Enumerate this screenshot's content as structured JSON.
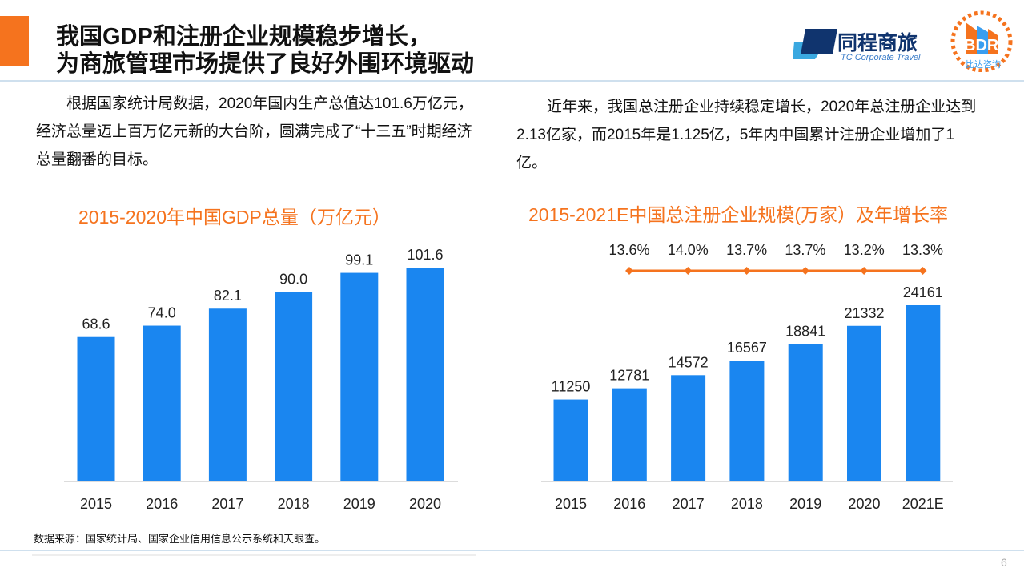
{
  "header": {
    "title_line1": "我国GDP和注册企业规模稳步增长，",
    "title_line2": "为商旅管理市场提供了良好外围环境驱动",
    "logo1": {
      "name": "同程商旅",
      "sub": "TC Corporate Travel"
    },
    "logo2": {
      "name": "BDR",
      "sub": "比达咨询"
    }
  },
  "left_text": "根据国家统计局数据，2020年国内生产总值达101.6万亿元，经济总量迈上百万亿元新的大台阶，圆满完成了“十三五”时期经济总量翻番的目标。",
  "right_text": "近年来，我国总注册企业持续稳定增长，2020年总注册企业达到2.13亿家，而2015年是1.125亿，5年内中国累计注册企业增加了1亿。",
  "chart_data": [
    {
      "type": "bar",
      "title": "2015-2020年中国GDP总量（万亿元）",
      "categories": [
        "2015",
        "2016",
        "2017",
        "2018",
        "2019",
        "2020"
      ],
      "values": [
        68.6,
        74.0,
        82.1,
        90.0,
        99.1,
        101.6
      ],
      "value_labels": [
        "68.6",
        "74.0",
        "82.1",
        "90.0",
        "99.1",
        "101.6"
      ],
      "ylim": [
        0,
        110
      ],
      "grid": false,
      "color": "#1a86f0"
    },
    {
      "type": "bar+line",
      "title": "2015-2021E中国总注册企业规模(万家）及年增长率",
      "categories": [
        "2015",
        "2016",
        "2017",
        "2018",
        "2019",
        "2020",
        "2021E"
      ],
      "values": [
        11250,
        12781,
        14572,
        16567,
        18841,
        21332,
        24161
      ],
      "growth_rate_labels": [
        "13.6%",
        "14.0%",
        "13.7%",
        "13.7%",
        "13.2%",
        "13.3%"
      ],
      "growth_rate": [
        13.6,
        14.0,
        13.7,
        13.7,
        13.2,
        13.3
      ],
      "ylim": [
        0,
        26000
      ],
      "grid": false,
      "bar_color": "#1a86f0",
      "line_color": "#f5731e"
    }
  ],
  "footer": {
    "source": "数据来源：国家统计局、国家企业信用信息公示系统和天眼查。",
    "page": "6"
  }
}
